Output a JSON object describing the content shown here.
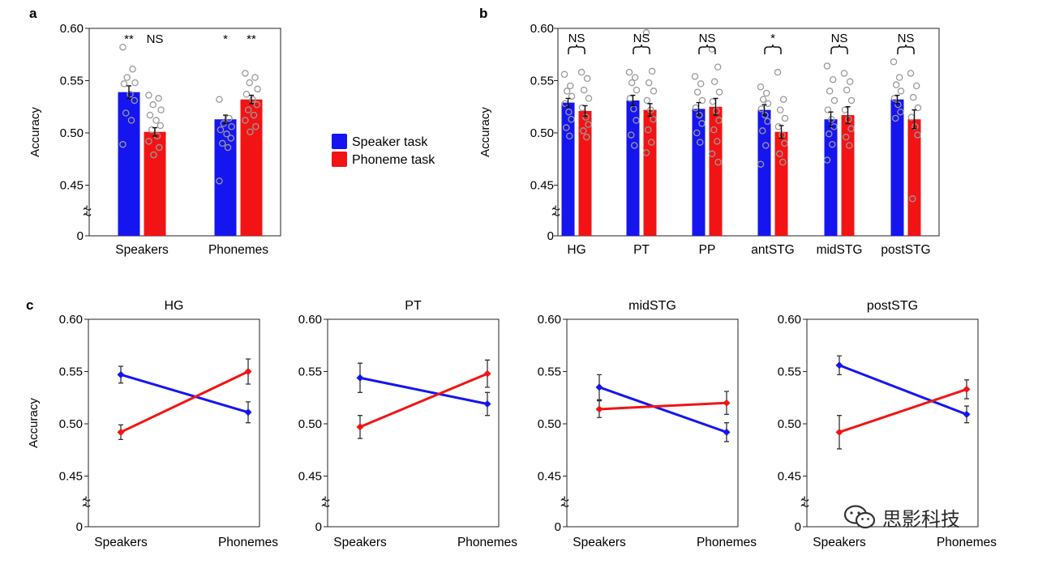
{
  "colors": {
    "speaker": "#1515f0",
    "phoneme": "#f21414",
    "dot": "#9a9a9a",
    "axis": "#222222"
  },
  "legend": {
    "speaker_label": "Speaker task",
    "phoneme_label": "Phoneme task"
  },
  "watermark": {
    "text": "思影科技",
    "icon": "wechat-icon"
  },
  "chart_data": [
    {
      "panel": "a",
      "type": "bar",
      "ylabel": "Accuracy",
      "yticks": [
        "0.60",
        "0.55",
        "0.50",
        "0.45",
        "0"
      ],
      "ylim": [
        0.42,
        0.6
      ],
      "axis_break": true,
      "categories": [
        "Speakers",
        "Phonemes"
      ],
      "series": [
        {
          "name": "Speaker task",
          "values": [
            0.539,
            0.513
          ],
          "sem": [
            0.006,
            0.004
          ],
          "points": [
            [
              0.582,
              0.561,
              0.553,
              0.548,
              0.547,
              0.537,
              0.531,
              0.519,
              0.512,
              0.489
            ],
            [
              0.532,
              0.514,
              0.509,
              0.506,
              0.503,
              0.499,
              0.495,
              0.49,
              0.486,
              0.454
            ]
          ]
        },
        {
          "name": "Phoneme task",
          "values": [
            0.501,
            0.532
          ],
          "sem": [
            0.004,
            0.004
          ],
          "points": [
            [
              0.536,
              0.533,
              0.527,
              0.522,
              0.517,
              0.512,
              0.507,
              0.503,
              0.497,
              0.492,
              0.486,
              0.479
            ],
            [
              0.557,
              0.553,
              0.548,
              0.542,
              0.537,
              0.532,
              0.527,
              0.522,
              0.517,
              0.512,
              0.506,
              0.501
            ]
          ]
        }
      ],
      "significance": [
        [
          "**",
          "NS"
        ],
        [
          "*",
          "**"
        ]
      ]
    },
    {
      "panel": "b",
      "type": "bar",
      "ylabel": "Accuracy",
      "yticks": [
        "0.60",
        "0.55",
        "0.50",
        "0.45",
        "0"
      ],
      "ylim": [
        0.42,
        0.6
      ],
      "axis_break": true,
      "categories": [
        "HG",
        "PT",
        "PP",
        "antSTG",
        "midSTG",
        "postSTG"
      ],
      "series": [
        {
          "name": "Speaker task",
          "values": [
            0.529,
            0.531,
            0.523,
            0.522,
            0.513,
            0.532
          ],
          "sem": [
            0.004,
            0.005,
            0.006,
            0.005,
            0.007,
            0.004
          ],
          "points": [
            [
              0.556,
              0.545,
              0.54,
              0.535,
              0.528,
              0.52,
              0.513,
              0.505,
              0.497
            ],
            [
              0.558,
              0.553,
              0.548,
              0.541,
              0.533,
              0.523,
              0.512,
              0.498,
              0.488
            ],
            [
              0.554,
              0.547,
              0.539,
              0.531,
              0.524,
              0.517,
              0.509,
              0.5,
              0.491
            ],
            [
              0.544,
              0.538,
              0.532,
              0.528,
              0.523,
              0.517,
              0.511,
              0.502,
              0.488,
              0.47
            ],
            [
              0.564,
              0.551,
              0.54,
              0.531,
              0.522,
              0.513,
              0.506,
              0.499,
              0.489,
              0.474
            ],
            [
              0.568,
              0.553,
              0.546,
              0.54,
              0.533,
              0.527,
              0.52,
              0.514
            ]
          ]
        },
        {
          "name": "Phoneme task",
          "values": [
            0.521,
            0.522,
            0.525,
            0.501,
            0.517,
            0.513
          ],
          "sem": [
            0.005,
            0.006,
            0.008,
            0.006,
            0.008,
            0.009
          ],
          "points": [
            [
              0.558,
              0.552,
              0.541,
              0.533,
              0.524,
              0.515,
              0.508,
              0.502,
              0.496
            ],
            [
              0.596,
              0.559,
              0.548,
              0.54,
              0.531,
              0.522,
              0.513,
              0.503,
              0.491,
              0.481
            ],
            [
              0.58,
              0.563,
              0.549,
              0.539,
              0.53,
              0.521,
              0.512,
              0.503,
              0.492,
              0.48,
              0.472
            ],
            [
              0.558,
              0.532,
              0.522,
              0.514,
              0.506,
              0.498,
              0.49,
              0.48,
              0.472
            ],
            [
              0.557,
              0.549,
              0.541,
              0.531,
              0.522,
              0.513,
              0.504,
              0.496,
              0.488
            ],
            [
              0.557,
              0.545,
              0.534,
              0.524,
              0.515,
              0.506,
              0.498,
              0.437
            ]
          ]
        }
      ],
      "significance": [
        "NS",
        "NS",
        "NS",
        "*",
        "NS",
        "NS"
      ]
    },
    {
      "panel": "c",
      "type": "line",
      "ylabel": "Accuracy",
      "yticks": [
        "0.60",
        "0.55",
        "0.50",
        "0.45",
        "0"
      ],
      "ylim": [
        0.42,
        0.6
      ],
      "axis_break": true,
      "x": [
        "Speakers",
        "Phonemes"
      ],
      "subplots": [
        {
          "title": "HG",
          "series": [
            {
              "name": "Speaker task",
              "values": [
                0.547,
                0.511
              ],
              "err": [
                0.008,
                0.01
              ]
            },
            {
              "name": "Phoneme task",
              "values": [
                0.492,
                0.55
              ],
              "err": [
                0.007,
                0.012
              ]
            }
          ]
        },
        {
          "title": "PT",
          "series": [
            {
              "name": "Speaker task",
              "values": [
                0.544,
                0.519
              ],
              "err": [
                0.014,
                0.011
              ]
            },
            {
              "name": "Phoneme task",
              "values": [
                0.497,
                0.548
              ],
              "err": [
                0.011,
                0.013
              ]
            }
          ]
        },
        {
          "title": "midSTG",
          "series": [
            {
              "name": "Speaker task",
              "values": [
                0.535,
                0.492
              ],
              "err": [
                0.012,
                0.009
              ]
            },
            {
              "name": "Phoneme task",
              "values": [
                0.514,
                0.52
              ],
              "err": [
                0.008,
                0.011
              ]
            }
          ]
        },
        {
          "title": "postSTG",
          "series": [
            {
              "name": "Speaker task",
              "values": [
                0.556,
                0.509
              ],
              "err": [
                0.009,
                0.008
              ]
            },
            {
              "name": "Phoneme task",
              "values": [
                0.492,
                0.533
              ],
              "err": [
                0.016,
                0.009
              ]
            }
          ]
        }
      ]
    }
  ]
}
